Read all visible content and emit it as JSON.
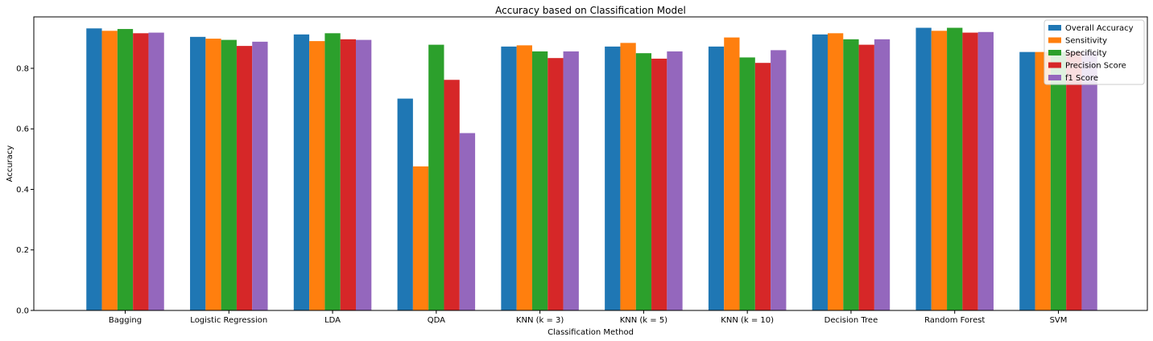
{
  "chart_data": {
    "type": "bar",
    "title": "Accuracy based on Classification Model",
    "xlabel": "Classification Method",
    "ylabel": "Accuracy",
    "ylim": [
      0,
      0.97
    ],
    "yticks": [
      "0.0",
      "0.2",
      "0.4",
      "0.6",
      "0.8"
    ],
    "legend_position": "top-right",
    "grid": false,
    "categories": [
      "Bagging",
      "Logistic Regression",
      "LDA",
      "QDA",
      "KNN (k = 3)",
      "KNN (k = 5)",
      "KNN (k = 10)",
      "Decision Tree",
      "Random Forest",
      "SVM"
    ],
    "series": [
      {
        "name": "Overall Accuracy",
        "color": "#1f77b4",
        "values": [
          0.932,
          0.904,
          0.912,
          0.7,
          0.872,
          0.872,
          0.872,
          0.912,
          0.934,
          0.854
        ]
      },
      {
        "name": "Sensitivity",
        "color": "#ff7f0e",
        "values": [
          0.924,
          0.898,
          0.89,
          0.476,
          0.876,
          0.884,
          0.902,
          0.916,
          0.924,
          0.854
        ]
      },
      {
        "name": "Specificity",
        "color": "#2ca02c",
        "values": [
          0.93,
          0.894,
          0.916,
          0.878,
          0.856,
          0.85,
          0.836,
          0.896,
          0.934,
          0.854
        ]
      },
      {
        "name": "Precision Score",
        "color": "#d62728",
        "values": [
          0.916,
          0.874,
          0.896,
          0.762,
          0.834,
          0.832,
          0.818,
          0.878,
          0.918,
          0.854
        ]
      },
      {
        "name": "f1 Score",
        "color": "#9467bd",
        "values": [
          0.918,
          0.888,
          0.894,
          0.586,
          0.856,
          0.856,
          0.86,
          0.896,
          0.92,
          0.854
        ]
      }
    ]
  }
}
